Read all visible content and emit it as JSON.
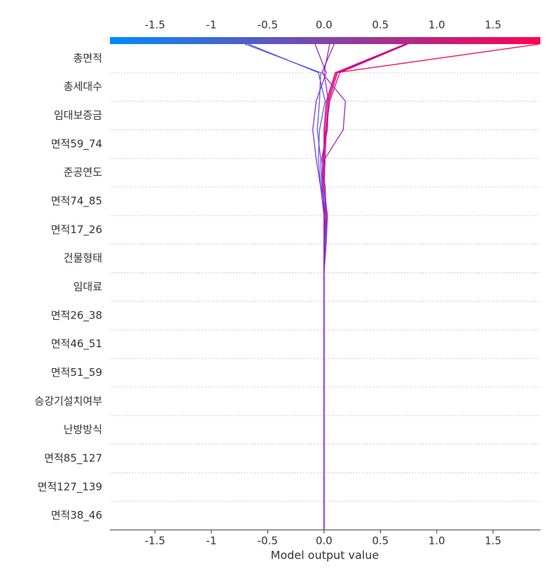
{
  "chart_data": {
    "type": "decision",
    "xlabel": "Model output value",
    "features": [
      "총면적",
      "총세대수",
      "임대보증금",
      "면적59_74",
      "준공연도",
      "면적74_85",
      "면적17_26",
      "건물형태",
      "임대료",
      "면적26_38",
      "면적46_51",
      "면적51_59",
      "승강기설치여부",
      "난방방식",
      "면적85_127",
      "면적127_139",
      "면적38_46"
    ],
    "base_value": 0.0,
    "xlim": [
      -1.9,
      1.92
    ],
    "xticks": [
      -1.5,
      -1.0,
      -0.5,
      {
        "value": 0,
        "label": "0.0"
      },
      0.5,
      {
        "value": 1,
        "label": "1.0"
      },
      1.5
    ],
    "colormap": [
      "#008bfb",
      "#ff0052"
    ],
    "series": [
      {
        "color": "#ff0a56",
        "values": [
          1.91,
          0.11,
          0.03,
          0.01,
          0.0,
          -0.01,
          0.01,
          0.0,
          0,
          0,
          0,
          0,
          0,
          0,
          0,
          0,
          0
        ]
      },
      {
        "color": "#d4008a",
        "values": [
          0.73,
          0.12,
          0.04,
          0.02,
          -0.01,
          -0.02,
          0.01,
          0.01,
          0,
          0,
          0,
          0,
          0,
          0,
          0,
          0,
          0
        ]
      },
      {
        "color": "#d2008b",
        "values": [
          0.72,
          0.1,
          0.02,
          0.0,
          0.0,
          -0.01,
          0.0,
          0.0,
          0,
          0,
          0,
          0,
          0,
          0,
          0,
          0,
          0
        ]
      },
      {
        "color": "#d5008a",
        "values": [
          0.74,
          0.14,
          0.05,
          0.02,
          0.01,
          0.0,
          0.02,
          0.01,
          0,
          0,
          0,
          0,
          0,
          0,
          0,
          0,
          0
        ]
      },
      {
        "color": "#5a5ce4",
        "values": [
          -0.67,
          -0.05,
          0.01,
          -0.04,
          -0.05,
          -0.03,
          0.03,
          0.02,
          0,
          0,
          0,
          0,
          0,
          0,
          0,
          0,
          0
        ]
      },
      {
        "color": "#5859e5",
        "values": [
          -0.7,
          -0.03,
          -0.04,
          -0.06,
          -0.03,
          -0.02,
          0.02,
          0.01,
          0,
          0,
          0,
          0,
          0,
          0,
          0,
          0,
          0
        ]
      },
      {
        "color": "#9a26c0",
        "values": [
          0.09,
          -0.02,
          0.19,
          0.17,
          0.01,
          0.0,
          0.03,
          0.01,
          0,
          0,
          0,
          0,
          0,
          0,
          0,
          0,
          0
        ]
      },
      {
        "color": "#8a2fca",
        "values": [
          -0.08,
          0.02,
          -0.07,
          -0.1,
          -0.07,
          -0.03,
          0.0,
          0.0,
          0,
          0,
          0,
          0,
          0,
          0,
          0,
          0,
          0
        ]
      },
      {
        "color": "#932ac4",
        "values": [
          0.05,
          0.0,
          0.04,
          0.03,
          -0.02,
          0.01,
          0.02,
          0.0,
          0,
          0,
          0,
          0,
          0,
          0,
          0,
          0,
          0
        ]
      }
    ]
  }
}
